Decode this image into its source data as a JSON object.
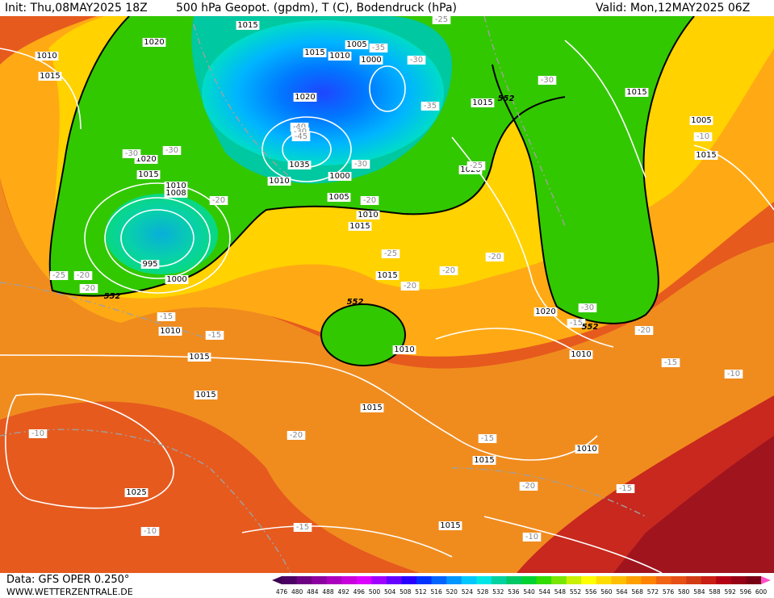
{
  "header": {
    "init": "Init: Thu,08MAY2025 18Z",
    "title": "500 hPa Geopot. (gpdm), T (C), Bodendruck (hPa)",
    "valid": "Valid: Mon,12MAY2025 06Z"
  },
  "footer": {
    "data_source": "Data: GFS OPER 0.250°",
    "website": "WWW.WETTERZENTRALE.DE"
  },
  "legend": {
    "values": [
      "476",
      "480",
      "484",
      "488",
      "492",
      "496",
      "500",
      "504",
      "508",
      "512",
      "516",
      "520",
      "524",
      "528",
      "532",
      "536",
      "540",
      "544",
      "548",
      "552",
      "556",
      "560",
      "564",
      "568",
      "572",
      "576",
      "580",
      "584",
      "588",
      "592",
      "596",
      "600"
    ],
    "colors": [
      "#4b0064",
      "#6e0082",
      "#8c00a0",
      "#aa00be",
      "#c800dc",
      "#dc00ff",
      "#a000ff",
      "#6400ff",
      "#2800ff",
      "#0032ff",
      "#0064ff",
      "#0096ff",
      "#00c8ff",
      "#00e6e6",
      "#00d2a0",
      "#00c864",
      "#00d232",
      "#32dc00",
      "#78e600",
      "#c8f000",
      "#ffff00",
      "#ffdc00",
      "#ffbe00",
      "#ffa000",
      "#ff8200",
      "#f06414",
      "#e65014",
      "#d23c14",
      "#c81e14",
      "#b40014",
      "#960014",
      "#780014"
    ]
  },
  "map_labels": {
    "isobars": [
      "1015",
      "1010",
      "1015",
      "1020",
      "1015",
      "1005",
      "1010",
      "1000",
      "1015",
      "1020",
      "1015",
      "1035",
      "1000",
      "1010",
      "1005",
      "1010",
      "1015",
      "1020",
      "1010",
      "1008",
      "1015",
      "995",
      "1000",
      "1015",
      "1010",
      "1005",
      "1020",
      "1015",
      "1020",
      "1010",
      "1015",
      "1010",
      "1015",
      "1025",
      "1015",
      "1015",
      "1010",
      "1015"
    ],
    "temperatures": [
      "-25",
      "-35",
      "-30",
      "-30",
      "-35",
      "-30",
      "-40",
      "-30",
      "-45",
      "-30",
      "-30",
      "-20",
      "-20",
      "-25",
      "-20",
      "-20",
      "-20",
      "-20",
      "-15",
      "-20",
      "-15",
      "-25",
      "-25",
      "-30",
      "-20",
      "-15",
      "-10",
      "-10",
      "-20",
      "-15",
      "-20",
      "-15",
      "-10",
      "-10",
      "-15",
      "-10",
      "-15"
    ],
    "contour_552": [
      "552",
      "552",
      "552",
      "552"
    ]
  },
  "colors": {
    "accent_green": "#32c800",
    "accent_blue": "#1e6eff",
    "warm_red": "#c81e14"
  }
}
